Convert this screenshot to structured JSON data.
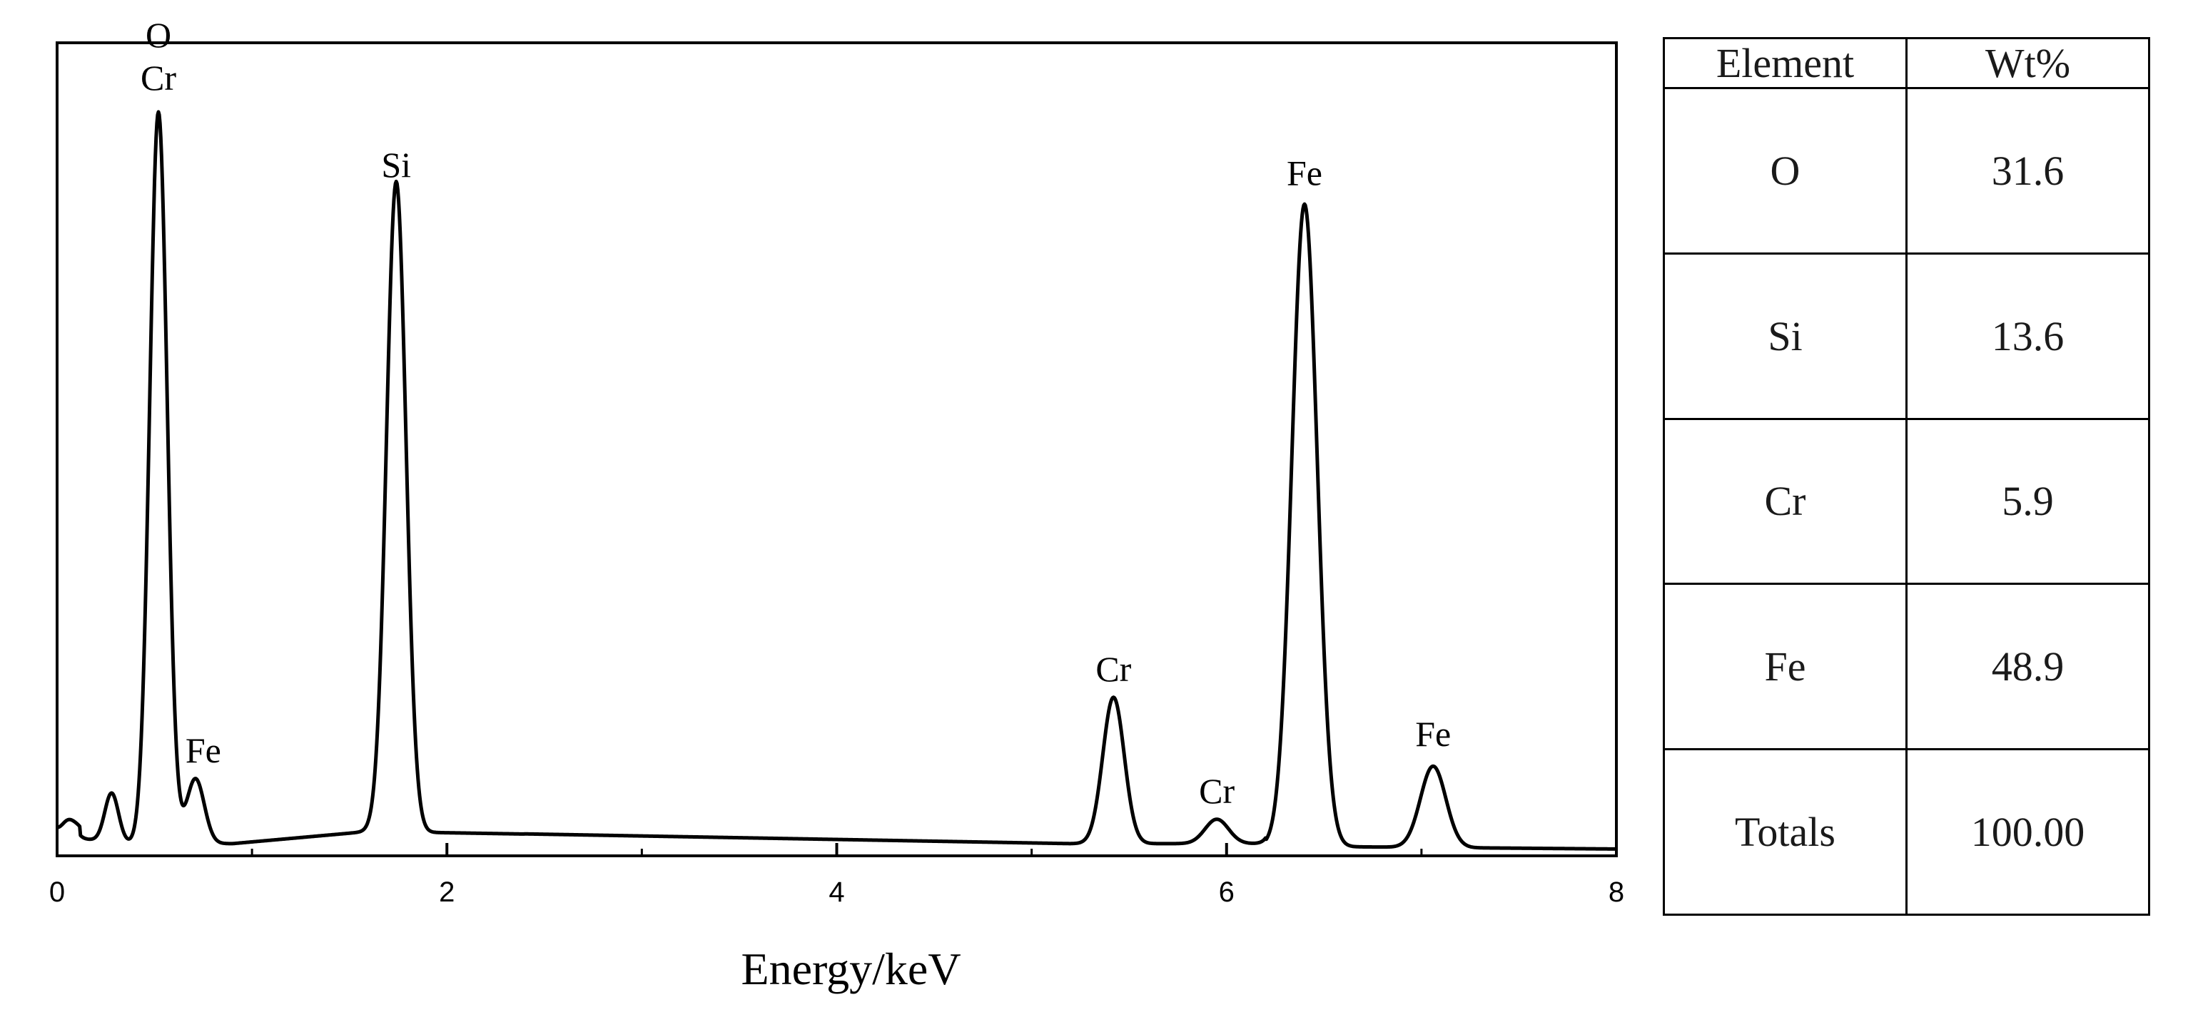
{
  "chart_data": {
    "type": "line",
    "title": "",
    "xlabel": "Energy/keV",
    "ylabel": "",
    "xlim": [
      0,
      8
    ],
    "ylim": [
      0,
      1.0
    ],
    "x_ticks": [
      "0",
      "2",
      "4",
      "6",
      "8"
    ],
    "grid": false,
    "series": [
      {
        "peaks": [
          {
            "x": 0.05,
            "y": 0.03
          },
          {
            "x": 0.28,
            "y": 0.06
          },
          {
            "x": 0.52,
            "y": 0.9
          },
          {
            "x": 0.71,
            "y": 0.08
          },
          {
            "x": 1.74,
            "y": 0.8
          },
          {
            "x": 5.42,
            "y": 0.18
          },
          {
            "x": 5.95,
            "y": 0.03
          },
          {
            "x": 6.4,
            "y": 0.79
          },
          {
            "x": 7.06,
            "y": 0.1
          }
        ]
      }
    ],
    "annotations": [
      {
        "text": "O",
        "x": 0.52
      },
      {
        "text": "Cr",
        "x": 0.52
      },
      {
        "text": "Fe",
        "x": 0.75
      },
      {
        "text": "Si",
        "x": 1.74
      },
      {
        "text": "Cr",
        "x": 5.42
      },
      {
        "text": "Cr",
        "x": 5.95
      },
      {
        "text": "Fe",
        "x": 6.4
      },
      {
        "text": "Fe",
        "x": 7.06
      }
    ]
  },
  "table": {
    "headers": [
      "Element",
      "Wt%"
    ],
    "rows": [
      [
        "O",
        "31.6"
      ],
      [
        "Si",
        "13.6"
      ],
      [
        "Cr",
        "5.9"
      ],
      [
        "Fe",
        "48.9"
      ],
      [
        "Totals",
        "100.00"
      ]
    ]
  }
}
